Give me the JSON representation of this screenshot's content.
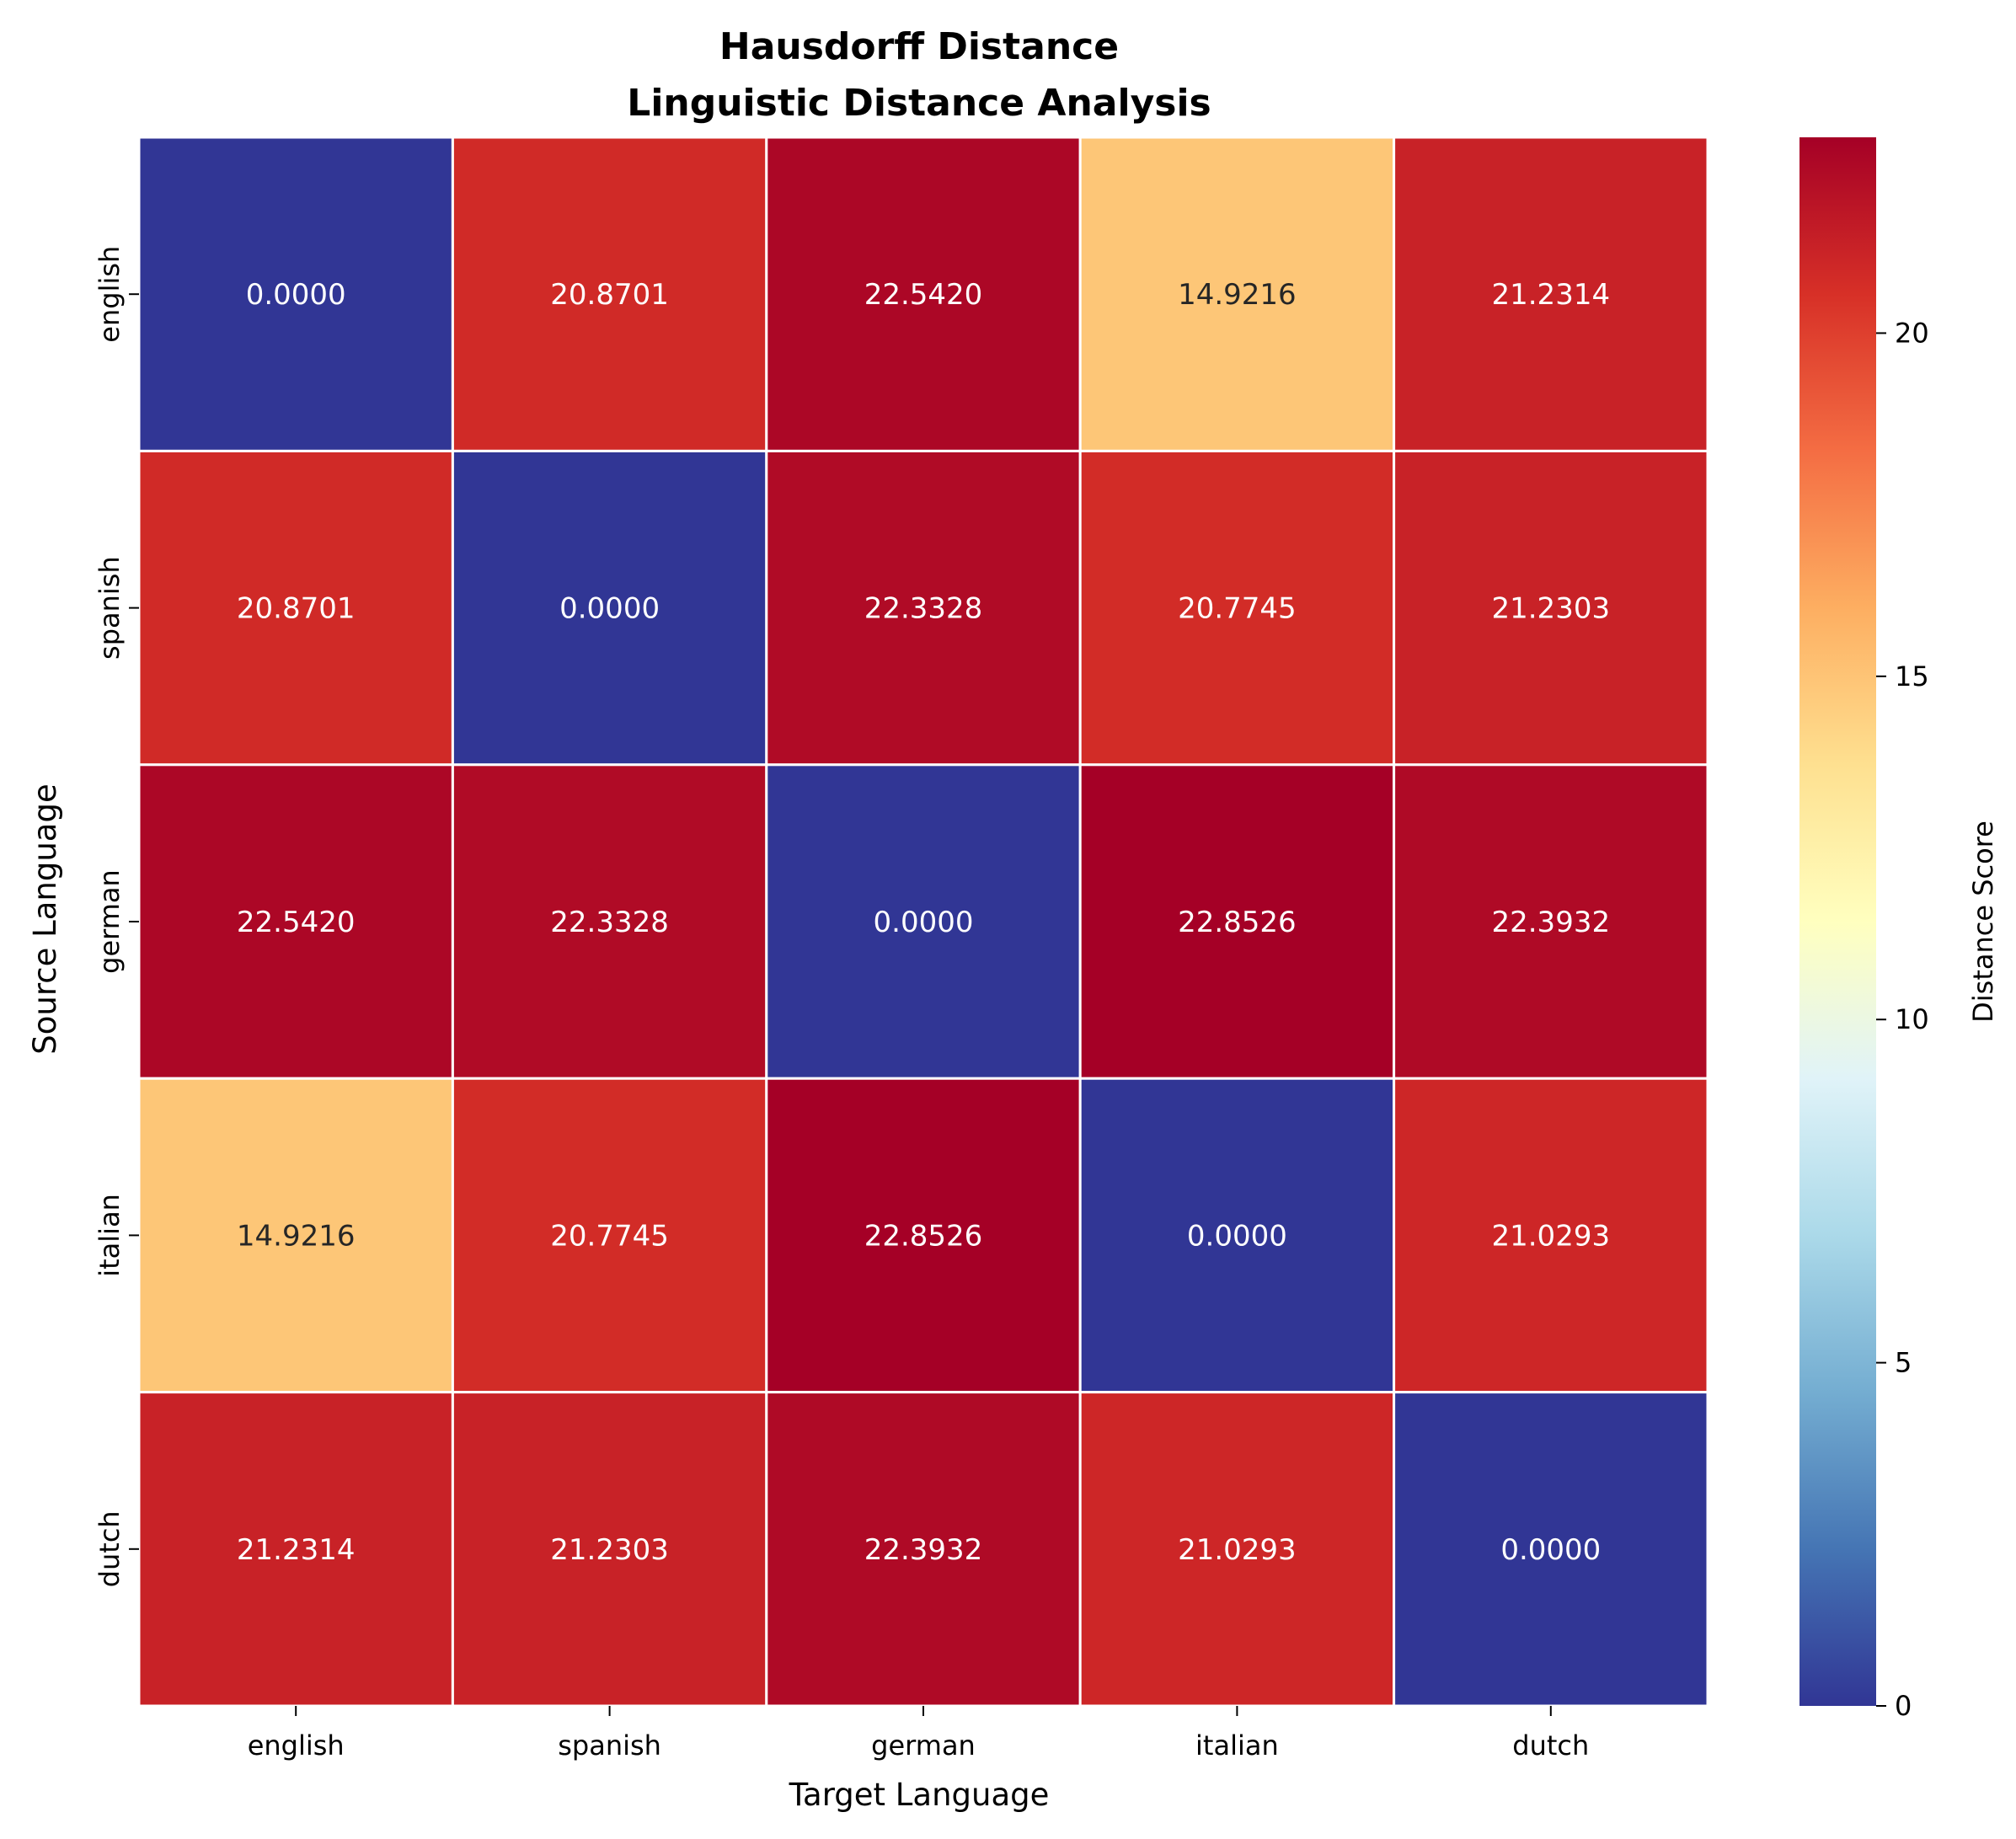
{
  "chart_data": {
    "type": "heatmap",
    "title_line1": "Hausdorff Distance",
    "title_line2": "Linguistic Distance Analysis",
    "xlabel": "Target Language",
    "ylabel": "Source Language",
    "x_categories": [
      "english",
      "spanish",
      "german",
      "italian",
      "dutch"
    ],
    "y_categories": [
      "english",
      "spanish",
      "german",
      "italian",
      "dutch"
    ],
    "values": [
      [
        0.0,
        20.8701,
        22.542,
        14.9216,
        21.2314
      ],
      [
        20.8701,
        0.0,
        22.3328,
        20.7745,
        21.2303
      ],
      [
        22.542,
        22.3328,
        0.0,
        22.8526,
        22.3932
      ],
      [
        14.9216,
        20.7745,
        22.8526,
        0.0,
        21.0293
      ],
      [
        21.2314,
        21.2303,
        22.3932,
        21.0293,
        0.0
      ]
    ],
    "value_format_decimals": 4,
    "colormap": "RdYlBu_r",
    "vmin": 0,
    "vmax": 22.8526,
    "colorbar": {
      "label": "Distance Score",
      "ticks": [
        0,
        5,
        10,
        15,
        20
      ]
    }
  }
}
